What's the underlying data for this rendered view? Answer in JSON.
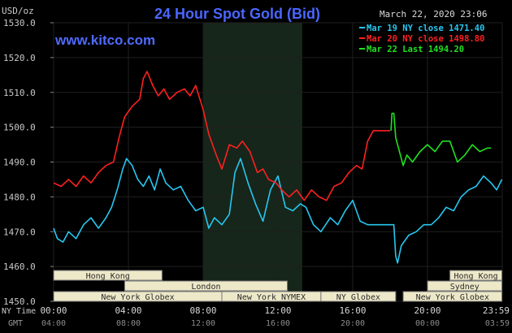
{
  "header": {
    "unit_label": "USD/oz",
    "title": "24 Hour Spot Gold (Bid)",
    "timestamp": "March 22, 2020 23:06",
    "website": "www.kitco.com"
  },
  "colors": {
    "background": "#000000",
    "title": "#4a66ff",
    "website": "#4f6bff",
    "gridline": "#1f1f1f",
    "shaded_band": "#17261a",
    "session_fill": "#ede8c8",
    "session_stroke": "#777777",
    "label_text": "#c9c9c9"
  },
  "legend": {
    "items": [
      {
        "label": "Mar 19 NY close 1471.40",
        "color": "#26c7f0"
      },
      {
        "label": "Mar 20 NY close 1498.80",
        "color": "#ff2020"
      },
      {
        "label": "Mar 22 Last 1494.20",
        "color": "#20e020"
      }
    ]
  },
  "axis_rows": {
    "row1_label": "NY Time",
    "row2_label": "GMT",
    "ny_ticks": [
      "00:00",
      "04:00",
      "08:00",
      "12:00",
      "16:00",
      "20:00",
      "23:59"
    ],
    "gmt_ticks": [
      "04:00",
      "08:00",
      "12:00",
      "16:00",
      "20:00",
      "00:00",
      "03:59"
    ]
  },
  "sessions": [
    {
      "label": "Hong Kong",
      "start": 0,
      "end": 5.8,
      "row": 0
    },
    {
      "label": "London",
      "start": 3.8,
      "end": 12.5,
      "row": 1
    },
    {
      "label": "New York Globex",
      "start": 0,
      "end": 9.0,
      "row": 2
    },
    {
      "label": "New York NYMEX",
      "start": 9.0,
      "end": 14.3,
      "row": 2
    },
    {
      "label": "NY Globex",
      "start": 14.3,
      "end": 18.3,
      "row": 2
    },
    {
      "label": "Hong Kong",
      "start": 21.2,
      "end": 23.98,
      "row": 0
    },
    {
      "label": "Sydney",
      "start": 20.0,
      "end": 23.98,
      "row": 1
    },
    {
      "label": "New York Globex",
      "start": 18.7,
      "end": 23.98,
      "row": 2
    }
  ],
  "chart_data": {
    "type": "line",
    "title": "24 Hour Spot Gold (Bid)",
    "ylabel": "USD/oz",
    "xlabel": "NY Time",
    "ylim": [
      1450,
      1530
    ],
    "yticks": [
      1450,
      1460,
      1470,
      1480,
      1490,
      1500,
      1510,
      1520,
      1530
    ],
    "ytick_labels": [
      "1450.0",
      "1460.0",
      "1470.0",
      "1480.0",
      "1490.0",
      "1500.0",
      "1510.0",
      "1520.0",
      "1530.0"
    ],
    "xlim": [
      0,
      24
    ],
    "shaded_region": [
      8.0,
      13.3
    ],
    "series": [
      {
        "name": "Mar 19 NY close 1471.40",
        "color": "#26c7f0",
        "points": [
          [
            0,
            1471
          ],
          [
            0.2,
            1468
          ],
          [
            0.5,
            1467
          ],
          [
            0.8,
            1470
          ],
          [
            1.2,
            1468
          ],
          [
            1.6,
            1472
          ],
          [
            2.0,
            1474
          ],
          [
            2.4,
            1471
          ],
          [
            2.8,
            1474
          ],
          [
            3.1,
            1477
          ],
          [
            3.4,
            1482
          ],
          [
            3.7,
            1488
          ],
          [
            3.9,
            1491
          ],
          [
            4.2,
            1489
          ],
          [
            4.5,
            1485
          ],
          [
            4.8,
            1483
          ],
          [
            5.1,
            1486
          ],
          [
            5.4,
            1482
          ],
          [
            5.7,
            1488
          ],
          [
            6.0,
            1484
          ],
          [
            6.4,
            1482
          ],
          [
            6.8,
            1483
          ],
          [
            7.2,
            1479
          ],
          [
            7.6,
            1476
          ],
          [
            8.0,
            1477
          ],
          [
            8.3,
            1471
          ],
          [
            8.6,
            1474
          ],
          [
            9.0,
            1472
          ],
          [
            9.4,
            1475
          ],
          [
            9.7,
            1487
          ],
          [
            10.0,
            1491
          ],
          [
            10.4,
            1484
          ],
          [
            10.8,
            1478
          ],
          [
            11.2,
            1473
          ],
          [
            11.6,
            1482
          ],
          [
            12.0,
            1486
          ],
          [
            12.4,
            1477
          ],
          [
            12.8,
            1476
          ],
          [
            13.2,
            1478
          ],
          [
            13.5,
            1477
          ],
          [
            13.9,
            1472
          ],
          [
            14.3,
            1470
          ],
          [
            14.8,
            1474
          ],
          [
            15.2,
            1472
          ],
          [
            15.6,
            1476
          ],
          [
            16.0,
            1479
          ],
          [
            16.4,
            1473
          ],
          [
            16.8,
            1472
          ],
          [
            17.2,
            1472
          ],
          [
            17.6,
            1472
          ],
          [
            18.0,
            1472
          ],
          [
            18.2,
            1472
          ],
          [
            18.3,
            1463
          ],
          [
            18.4,
            1461
          ],
          [
            18.6,
            1466
          ],
          [
            19.0,
            1469
          ],
          [
            19.4,
            1470
          ],
          [
            19.8,
            1472
          ],
          [
            20.2,
            1472
          ],
          [
            20.6,
            1474
          ],
          [
            21.0,
            1477
          ],
          [
            21.4,
            1476
          ],
          [
            21.8,
            1480
          ],
          [
            22.2,
            1482
          ],
          [
            22.6,
            1483
          ],
          [
            23.0,
            1486
          ],
          [
            23.4,
            1484
          ],
          [
            23.7,
            1482
          ],
          [
            23.98,
            1485
          ]
        ]
      },
      {
        "name": "Mar 20 NY close 1498.80",
        "color": "#ff2020",
        "points": [
          [
            0,
            1484
          ],
          [
            0.4,
            1483
          ],
          [
            0.8,
            1485
          ],
          [
            1.2,
            1483
          ],
          [
            1.6,
            1486
          ],
          [
            2.0,
            1484
          ],
          [
            2.4,
            1487
          ],
          [
            2.8,
            1489
          ],
          [
            3.2,
            1490
          ],
          [
            3.5,
            1497
          ],
          [
            3.8,
            1503
          ],
          [
            4.2,
            1506
          ],
          [
            4.6,
            1508
          ],
          [
            4.8,
            1514
          ],
          [
            5.0,
            1516
          ],
          [
            5.3,
            1512
          ],
          [
            5.6,
            1509
          ],
          [
            5.9,
            1511
          ],
          [
            6.2,
            1508
          ],
          [
            6.6,
            1510
          ],
          [
            7.0,
            1511
          ],
          [
            7.3,
            1509
          ],
          [
            7.6,
            1512
          ],
          [
            8.0,
            1505
          ],
          [
            8.3,
            1498
          ],
          [
            8.7,
            1492
          ],
          [
            9.0,
            1488
          ],
          [
            9.4,
            1495
          ],
          [
            9.8,
            1494
          ],
          [
            10.1,
            1496
          ],
          [
            10.5,
            1493
          ],
          [
            10.9,
            1487
          ],
          [
            11.2,
            1488
          ],
          [
            11.5,
            1485
          ],
          [
            11.9,
            1484
          ],
          [
            12.2,
            1482
          ],
          [
            12.6,
            1480
          ],
          [
            13.0,
            1482
          ],
          [
            13.4,
            1479
          ],
          [
            13.8,
            1482
          ],
          [
            14.2,
            1480
          ],
          [
            14.6,
            1479
          ],
          [
            15.0,
            1483
          ],
          [
            15.4,
            1484
          ],
          [
            15.8,
            1487
          ],
          [
            16.2,
            1489
          ],
          [
            16.5,
            1488
          ],
          [
            16.8,
            1496
          ],
          [
            17.1,
            1499
          ],
          [
            17.4,
            1499
          ],
          [
            17.7,
            1499
          ],
          [
            18.0,
            1499
          ]
        ]
      },
      {
        "name": "Mar 22 Last 1494.20",
        "color": "#20e020",
        "points": [
          [
            18.05,
            1499
          ],
          [
            18.1,
            1504
          ],
          [
            18.2,
            1504
          ],
          [
            18.3,
            1497
          ],
          [
            18.5,
            1493
          ],
          [
            18.7,
            1489
          ],
          [
            18.9,
            1492
          ],
          [
            19.2,
            1490
          ],
          [
            19.6,
            1493
          ],
          [
            20.0,
            1495
          ],
          [
            20.4,
            1493
          ],
          [
            20.8,
            1496
          ],
          [
            21.2,
            1496
          ],
          [
            21.6,
            1490
          ],
          [
            22.0,
            1492
          ],
          [
            22.4,
            1495
          ],
          [
            22.8,
            1493
          ],
          [
            23.2,
            1494
          ],
          [
            23.4,
            1494
          ]
        ]
      }
    ]
  }
}
